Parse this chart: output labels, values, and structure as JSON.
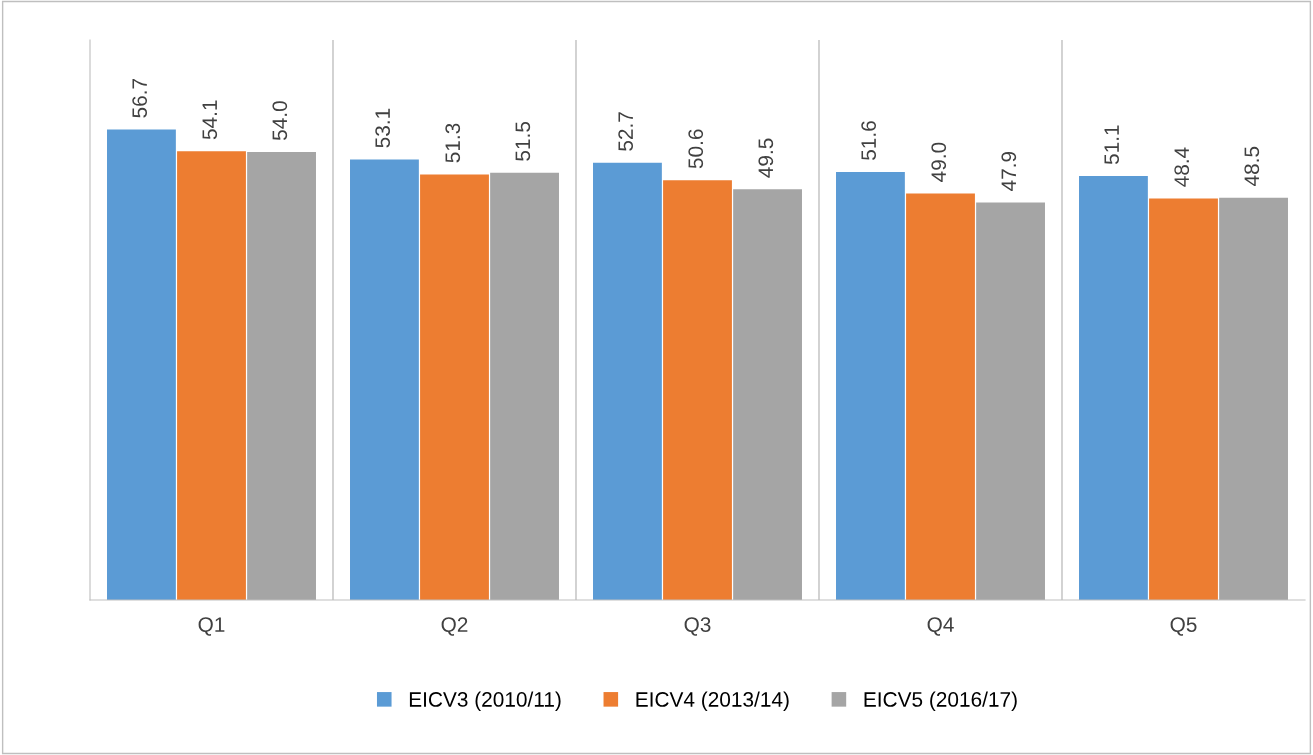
{
  "chart_data": {
    "type": "bar",
    "categories": [
      "Q1",
      "Q2",
      "Q3",
      "Q4",
      "Q5"
    ],
    "series": [
      {
        "name": "EICV3 (2010/11)",
        "color": "#5b9bd5",
        "values": [
          56.7,
          53.1,
          52.7,
          51.6,
          51.1
        ],
        "value_labels": [
          "56.7",
          "53.1",
          "52.7",
          "51.6",
          "51.1"
        ]
      },
      {
        "name": "EICV4 (2013/14)",
        "color": "#ed7d31",
        "values": [
          54.1,
          51.3,
          50.6,
          49.0,
          48.4
        ],
        "value_labels": [
          "54.1",
          "51.3",
          "50.6",
          "49.0",
          "48.4"
        ]
      },
      {
        "name": "EICV5 (2016/17)",
        "color": "#a5a5a5",
        "values": [
          54.0,
          51.5,
          49.5,
          47.9,
          48.5
        ],
        "value_labels": [
          "54.0",
          "51.5",
          "49.5",
          "47.9",
          "48.5"
        ]
      }
    ],
    "ylim": [
      0,
      67.5
    ],
    "grid": "x",
    "legend": "bottom",
    "tick_labels": "x"
  }
}
